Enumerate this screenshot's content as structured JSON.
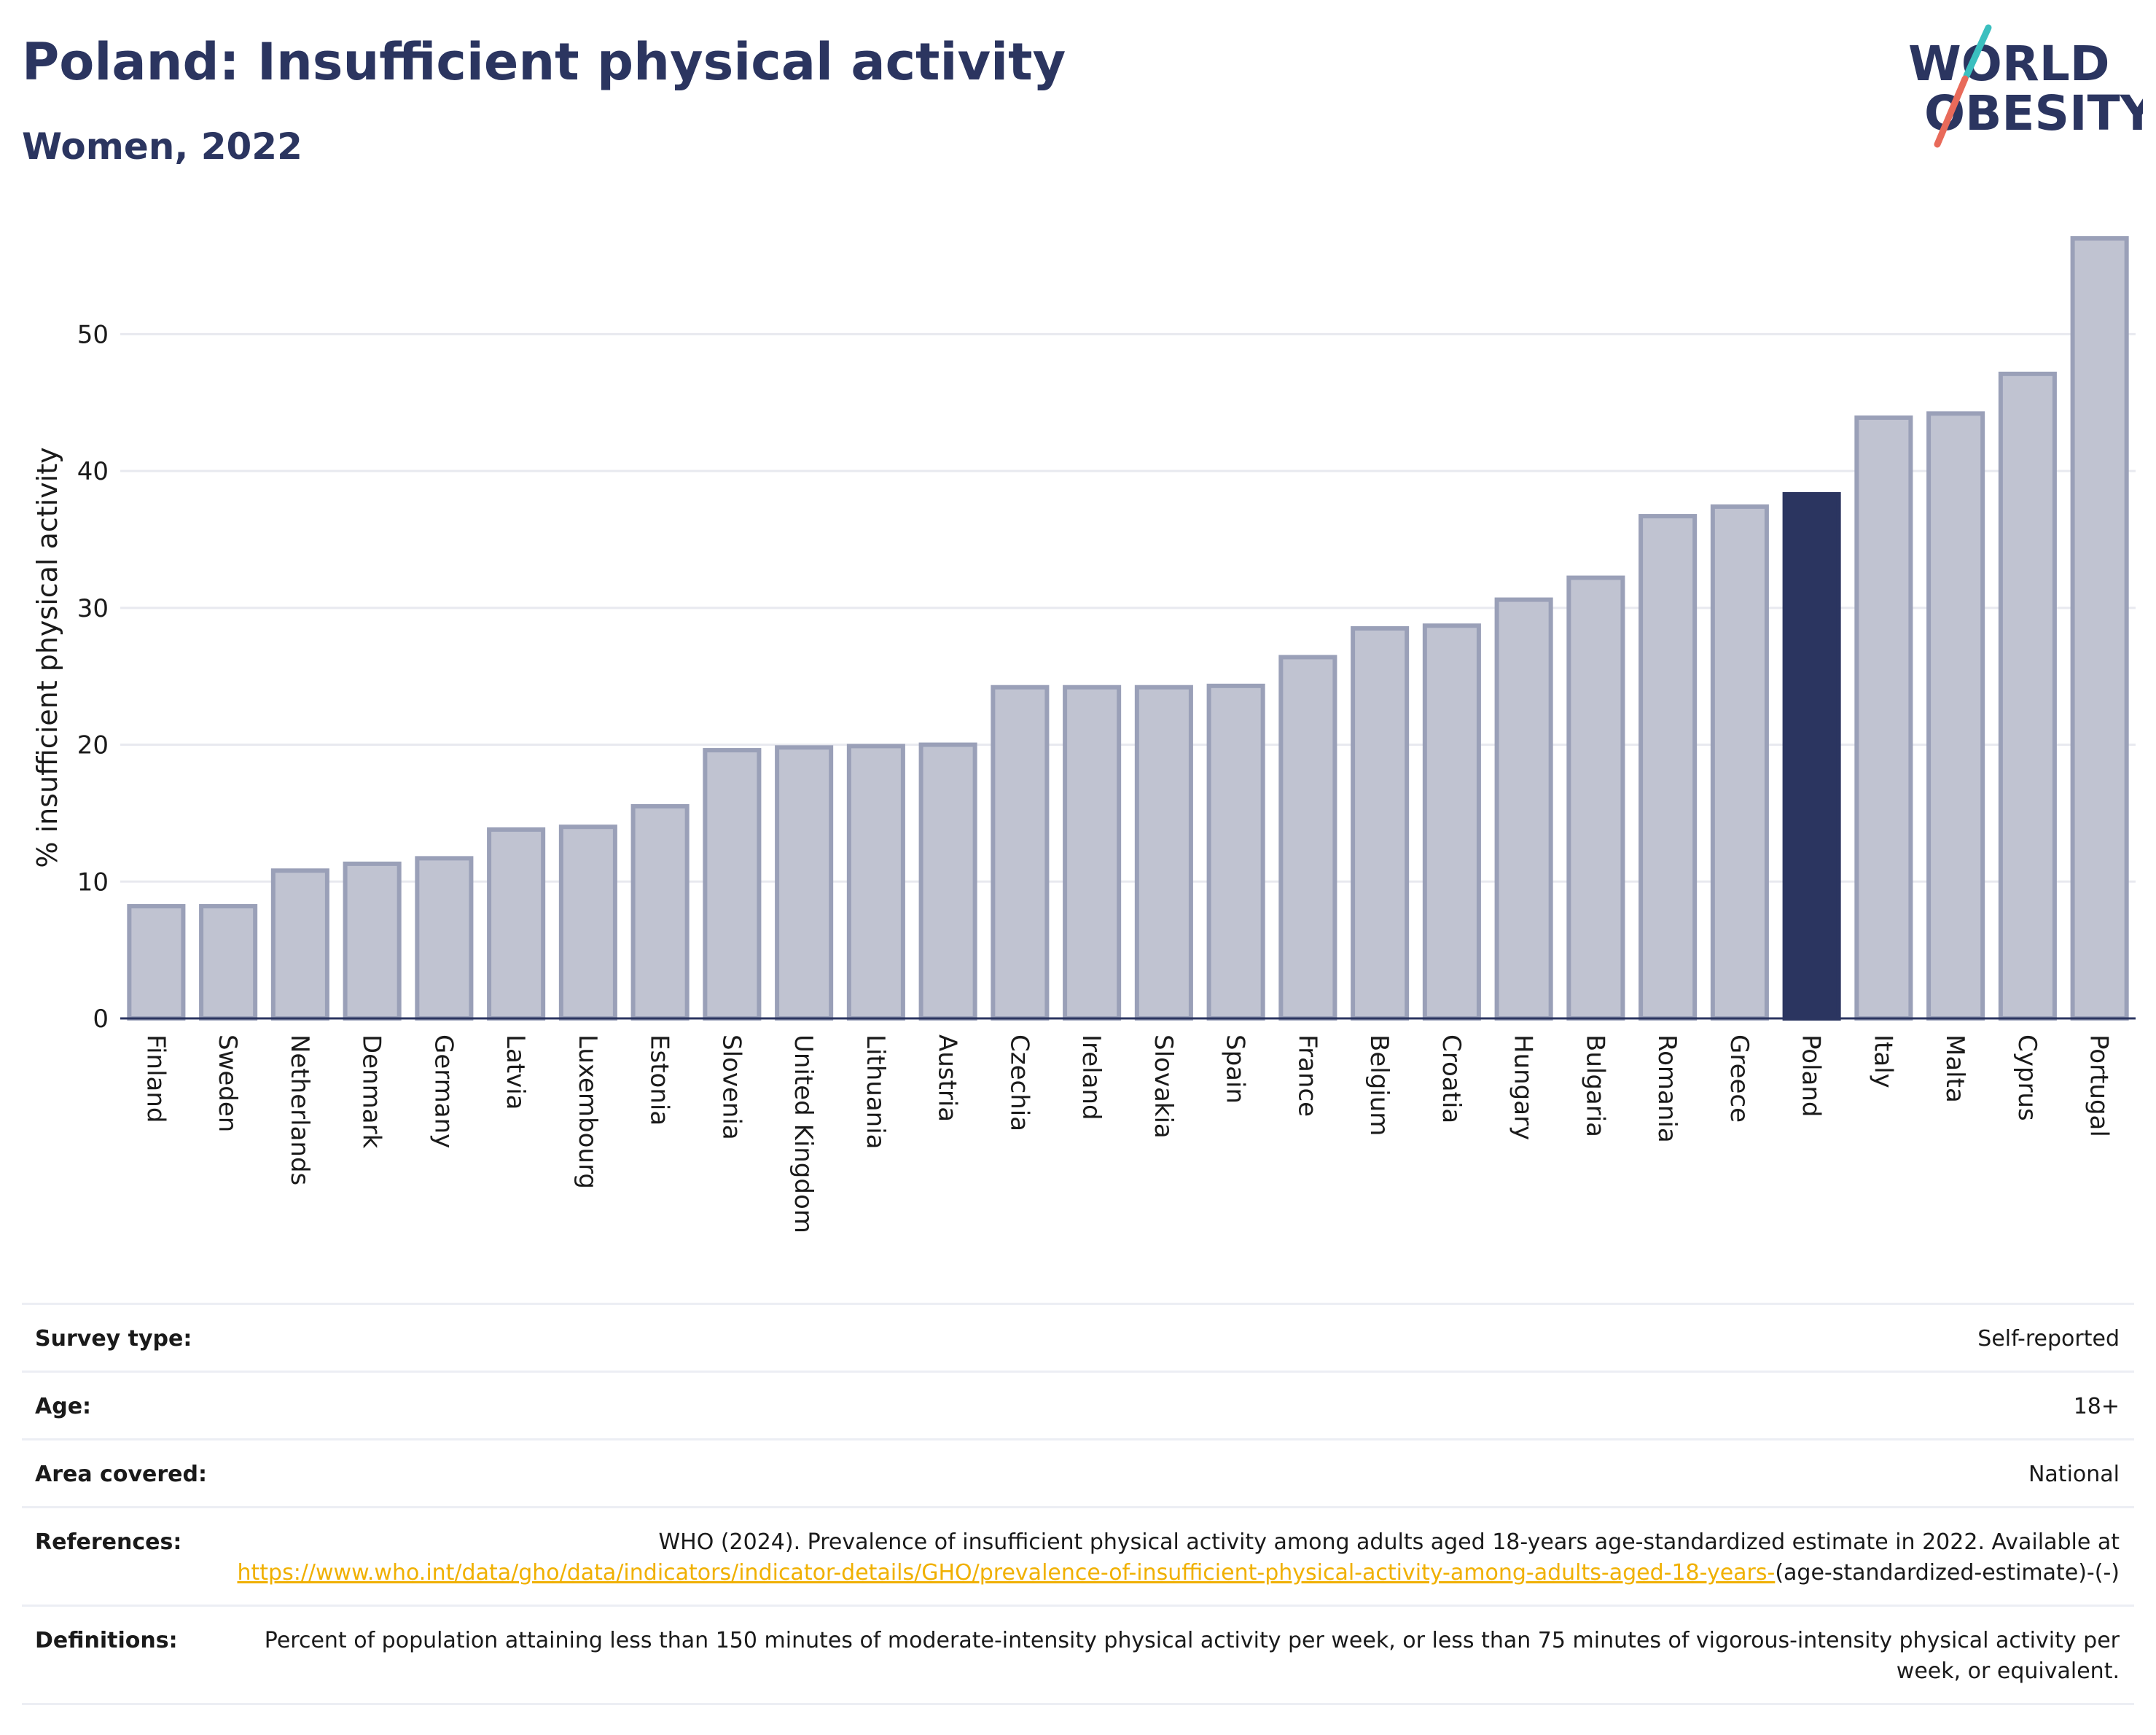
{
  "title": "Poland: Insufficient physical activity",
  "subtitle": "Women, 2022",
  "logo": {
    "line1": "WORLD",
    "line2": "OBESITY"
  },
  "chart_data": {
    "type": "bar",
    "ylabel": "% insufficient physical activity",
    "ylim": [
      0,
      57
    ],
    "yticks": [
      0,
      10,
      20,
      30,
      40,
      50
    ],
    "grid": true,
    "highlight": "Poland",
    "colors": {
      "bar": "#c0c3d1",
      "bar_edge": "#9aa0b8",
      "highlight": "#2b3560",
      "grid": "#e8e9ef",
      "axis": "#2b3560"
    },
    "categories": [
      "Finland",
      "Sweden",
      "Netherlands",
      "Denmark",
      "Germany",
      "Latvia",
      "Luxembourg",
      "Estonia",
      "Slovenia",
      "United Kingdom",
      "Lithuania",
      "Austria",
      "Czechia",
      "Ireland",
      "Slovakia",
      "Spain",
      "France",
      "Belgium",
      "Croatia",
      "Hungary",
      "Bulgaria",
      "Romania",
      "Greece",
      "Poland",
      "Italy",
      "Malta",
      "Cyprus",
      "Portugal"
    ],
    "values": [
      8.2,
      8.2,
      10.8,
      11.3,
      11.7,
      13.8,
      14.0,
      15.5,
      19.6,
      19.8,
      19.9,
      20.0,
      24.2,
      24.2,
      24.2,
      24.3,
      26.4,
      28.5,
      28.7,
      30.6,
      32.2,
      36.7,
      37.4,
      38.3,
      43.9,
      44.2,
      47.1,
      57.0
    ]
  },
  "info": {
    "survey_label": "Survey type:",
    "survey_value": "Self-reported",
    "age_label": "Age:",
    "age_value": "18+",
    "area_label": "Area covered:",
    "area_value": "National",
    "ref_label": "References:",
    "ref_text": "WHO (2024). Prevalence of insufficient physical activity among adults aged 18-years age-standardized estimate in 2022. Available at ",
    "ref_link": "https://www.who.int/data/gho/data/indicators/indicator-details/GHO/prevalence-of-insufficient-physical-activity-among-adults-aged-18-years-",
    "ref_tail": "(age-standardized-estimate)-(-)",
    "def_label": "Definitions:",
    "def_text": "Percent of population attaining less than 150 minutes of moderate-intensity physical activity per week, or less than 75 minutes of vigorous-intensity physical activity per week, or equivalent."
  }
}
